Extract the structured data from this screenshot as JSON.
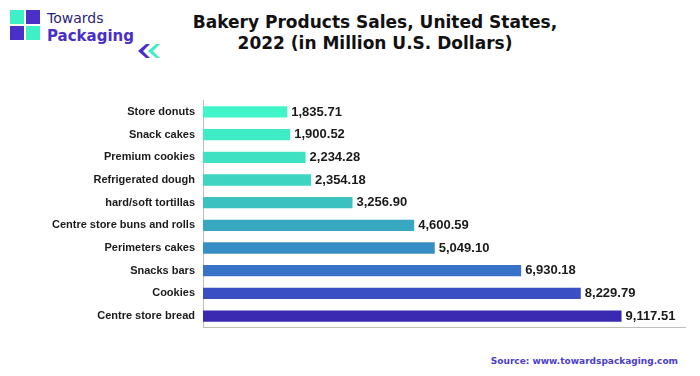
{
  "logo": {
    "line1": "Towards",
    "line2": "Packaging"
  },
  "source": "Source: www.towardspackaging.com",
  "chart_data": {
    "type": "bar",
    "orientation": "horizontal",
    "title": [
      "Bakery Products Sales, United States,",
      "2022 (in Million U.S. Dollars)"
    ],
    "categories": [
      "Store donuts",
      "Snack cakes",
      "Premium cookies",
      "Refrigerated dough",
      "hard/soft tortillas",
      "Centre store buns and rolls",
      "Perimeters cakes",
      "Snacks bars",
      "Cookies",
      "Centre store bread"
    ],
    "values": [
      1835.71,
      1900.52,
      2234.28,
      2354.18,
      3256.9,
      4600.59,
      5049.1,
      6930.18,
      8229.79,
      9117.51
    ],
    "value_labels": [
      "1,835.71",
      "1,900.52",
      "2,234.28",
      "2,354.18",
      "3,256.90",
      "4,600.59",
      "5,049.10",
      "6,930.18",
      "8,229.79",
      "9,117.51"
    ],
    "colors": [
      "#40f5c8",
      "#3fecc5",
      "#3ee2c3",
      "#3dd5c1",
      "#3bc2c0",
      "#38a8c1",
      "#368ec4",
      "#3772c6",
      "#3a4fc4",
      "#3a2ab2"
    ],
    "xlim": [
      0,
      10500
    ],
    "data_labels": true,
    "tick_labels": "y",
    "grid": false
  }
}
